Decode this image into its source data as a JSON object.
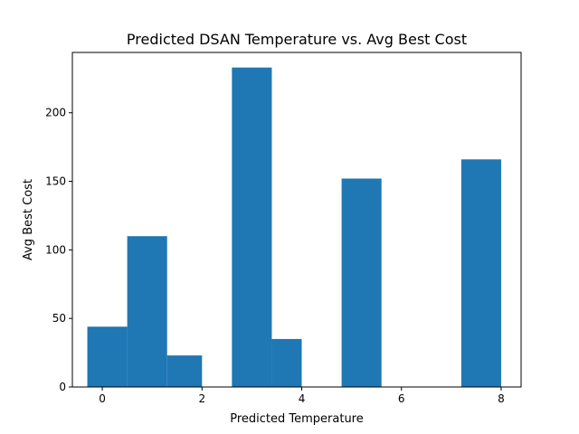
{
  "chart_data": {
    "type": "bar",
    "title": "Predicted DSAN Temperature vs. Avg Best Cost",
    "xlabel": "Predicted Temperature",
    "ylabel": "Avg Best Cost",
    "xlim": [
      -0.6,
      8.4
    ],
    "ylim": [
      0,
      244
    ],
    "xticks": [
      0,
      2,
      4,
      6,
      8
    ],
    "yticks": [
      0,
      50,
      100,
      150,
      200
    ],
    "grid": false,
    "color": "#1f77b4",
    "bars": [
      {
        "x0": -0.3,
        "x1": 0.5,
        "value": 44
      },
      {
        "x0": 0.5,
        "x1": 1.3,
        "value": 110
      },
      {
        "x0": 1.3,
        "x1": 2.0,
        "value": 23
      },
      {
        "x0": 2.6,
        "x1": 3.4,
        "value": 233
      },
      {
        "x0": 3.4,
        "x1": 4.0,
        "value": 35
      },
      {
        "x0": 4.8,
        "x1": 5.6,
        "value": 152
      },
      {
        "x0": 7.2,
        "x1": 8.0,
        "value": 166
      }
    ]
  }
}
